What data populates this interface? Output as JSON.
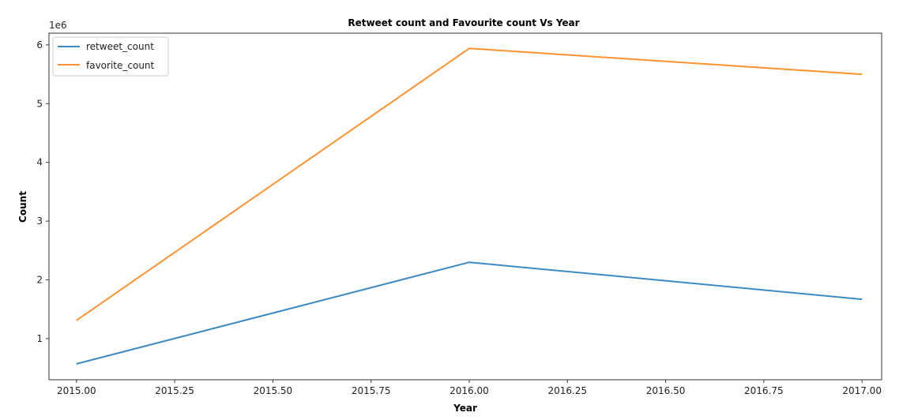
{
  "chart_data": {
    "type": "line",
    "title": "Retweet count and Favourite count Vs Year",
    "xlabel": "Year",
    "ylabel": "Count",
    "y_offset_label": "1e6",
    "y_scale": 1000000,
    "x": [
      2015,
      2016,
      2017
    ],
    "series": [
      {
        "name": "retweet_count",
        "color": "#3b8bc2",
        "values": [
          570000,
          2300000,
          1670000
        ]
      },
      {
        "name": "favorite_count",
        "color": "#ff9230",
        "values": [
          1310000,
          5940000,
          5500000
        ]
      }
    ],
    "xlim": [
      2014.93,
      2017.05
    ],
    "ylim": [
      0.3,
      6.2
    ],
    "x_ticks": [
      2015.0,
      2015.25,
      2015.5,
      2015.75,
      2016.0,
      2016.25,
      2016.5,
      2016.75,
      2017.0
    ],
    "x_tick_labels": [
      "2015.00",
      "2015.25",
      "2015.50",
      "2015.75",
      "2016.00",
      "2016.25",
      "2016.50",
      "2016.75",
      "2017.00"
    ],
    "y_ticks": [
      1,
      2,
      3,
      4,
      5,
      6
    ],
    "y_tick_labels": [
      "1",
      "2",
      "3",
      "4",
      "5",
      "6"
    ],
    "grid": false,
    "legend_position": "top-left"
  }
}
